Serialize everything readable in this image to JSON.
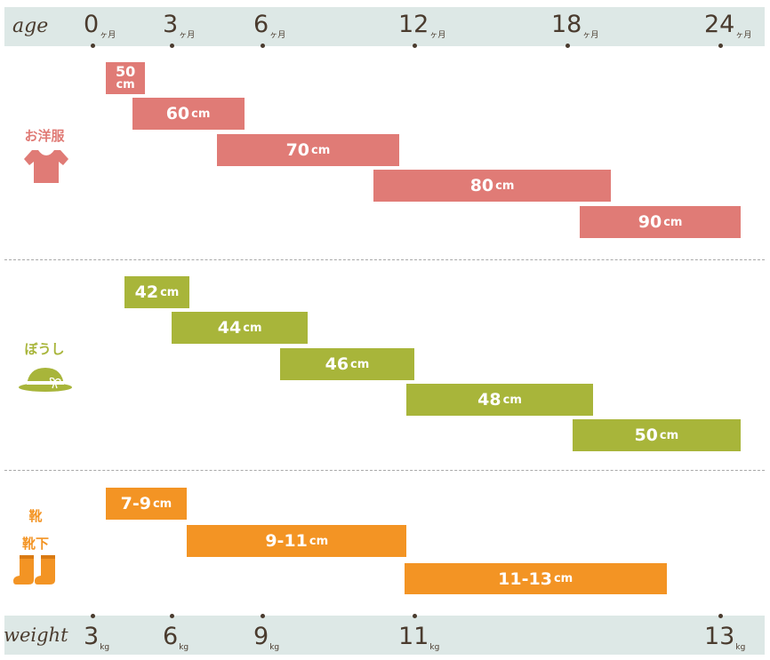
{
  "colors": {
    "strip": "#dde8e6",
    "text": "#4a3b2e",
    "clothes": "#e07b76",
    "hat": "#a8b53a",
    "shoes": "#f39424"
  },
  "age_axis": {
    "title": "age",
    "unit": "ヶ月",
    "ticks": [
      {
        "label": "0",
        "value": 0
      },
      {
        "label": "3",
        "value": 3
      },
      {
        "label": "6",
        "value": 6
      },
      {
        "label": "12",
        "value": 12
      },
      {
        "label": "18",
        "value": 18
      },
      {
        "label": "24",
        "value": 24
      }
    ]
  },
  "weight_axis": {
    "title": "weight",
    "unit": "kg",
    "ticks": [
      {
        "label": "3",
        "value": 3
      },
      {
        "label": "6",
        "value": 6
      },
      {
        "label": "9",
        "value": 9
      },
      {
        "label": "11",
        "value": 11
      },
      {
        "label": "13",
        "value": 13
      }
    ]
  },
  "chart_data": {
    "type": "bar",
    "orientation": "horizontal-range",
    "x_axis": "age (months)",
    "xlim": [
      0,
      24
    ],
    "groups": [
      {
        "name": "お洋服",
        "icon": "t-shirt-icon",
        "color": "#e07b76",
        "bars": [
          {
            "size": "50",
            "unit": "cm",
            "start": 0.5,
            "end": 2.0
          },
          {
            "size": "60",
            "unit": "cm",
            "start": 1.5,
            "end": 5.4
          },
          {
            "size": "70",
            "unit": "cm",
            "start": 4.5,
            "end": 11.4
          },
          {
            "size": "80",
            "unit": "cm",
            "start": 10.4,
            "end": 19.7
          },
          {
            "size": "90",
            "unit": "cm",
            "start": 18.5,
            "end": 24.8
          }
        ]
      },
      {
        "name": "ぼうし",
        "icon": "hat-icon",
        "color": "#a8b53a",
        "bars": [
          {
            "size": "42",
            "unit": "cm",
            "start": 1.2,
            "end": 3.6
          },
          {
            "size": "44",
            "unit": "cm",
            "start": 3.0,
            "end": 7.8
          },
          {
            "size": "46",
            "unit": "cm",
            "start": 6.7,
            "end": 12.0
          },
          {
            "size": "48",
            "unit": "cm",
            "start": 11.7,
            "end": 19.0
          },
          {
            "size": "50",
            "unit": "cm",
            "start": 18.2,
            "end": 24.8
          }
        ]
      },
      {
        "name": "靴\n靴下",
        "icon": "boots-icon",
        "color": "#f39424",
        "bars": [
          {
            "size": "7-9",
            "unit": "cm",
            "start": 0.5,
            "end": 3.5
          },
          {
            "size": "9-11",
            "unit": "cm",
            "start": 3.5,
            "end": 11.7
          },
          {
            "size": "11-13",
            "unit": "cm",
            "start": 11.6,
            "end": 21.9
          }
        ]
      }
    ]
  }
}
